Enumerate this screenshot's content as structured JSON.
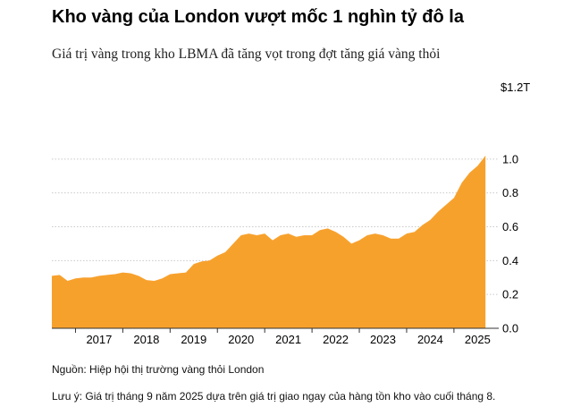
{
  "chart_data": {
    "type": "area",
    "title": "Kho vàng của London vượt mốc 1 nghìn tỷ đô la",
    "subtitle": "Giá trị vàng trong kho LBMA đã tăng vọt trong đợt tăng giá vàng thỏi",
    "y_unit_label": "$1.2T",
    "ylim": [
      0,
      1.2
    ],
    "y_ticks": [
      {
        "value": 0.0,
        "label": "0.0"
      },
      {
        "value": 0.2,
        "label": "0.2"
      },
      {
        "value": 0.4,
        "label": "0.4"
      },
      {
        "value": 0.6,
        "label": "0.6"
      },
      {
        "value": 0.8,
        "label": "0.8"
      },
      {
        "value": 1.0,
        "label": "1.0"
      }
    ],
    "x_ticks": [
      "2017",
      "2018",
      "2019",
      "2020",
      "2021",
      "2022",
      "2023",
      "2024",
      "2025"
    ],
    "grid": true,
    "color": "#f7a12d",
    "series": [
      {
        "x": [
          "2016-07",
          "2016-09",
          "2016-11",
          "2017-01",
          "2017-03",
          "2017-05",
          "2017-07",
          "2017-09",
          "2017-11",
          "2018-01",
          "2018-03",
          "2018-05",
          "2018-07",
          "2018-09",
          "2018-11",
          "2019-01",
          "2019-03",
          "2019-05",
          "2019-07",
          "2019-09",
          "2019-11",
          "2020-01",
          "2020-03",
          "2020-05",
          "2020-07",
          "2020-09",
          "2020-11",
          "2021-01",
          "2021-03",
          "2021-05",
          "2021-07",
          "2021-09",
          "2021-11",
          "2022-01",
          "2022-03",
          "2022-05",
          "2022-07",
          "2022-09",
          "2022-11",
          "2023-01",
          "2023-03",
          "2023-05",
          "2023-07",
          "2023-09",
          "2023-11",
          "2024-01",
          "2024-03",
          "2024-05",
          "2024-07",
          "2024-09",
          "2024-11",
          "2025-01",
          "2025-03",
          "2025-05",
          "2025-07",
          "2025-09"
        ],
        "values": [
          0.31,
          0.315,
          0.28,
          0.295,
          0.3,
          0.3,
          0.31,
          0.315,
          0.32,
          0.33,
          0.325,
          0.31,
          0.285,
          0.28,
          0.295,
          0.32,
          0.325,
          0.33,
          0.38,
          0.395,
          0.4,
          0.43,
          0.45,
          0.5,
          0.55,
          0.56,
          0.55,
          0.56,
          0.52,
          0.55,
          0.56,
          0.54,
          0.55,
          0.55,
          0.58,
          0.59,
          0.57,
          0.54,
          0.5,
          0.52,
          0.55,
          0.56,
          0.55,
          0.53,
          0.53,
          0.56,
          0.57,
          0.61,
          0.64,
          0.69,
          0.73,
          0.77,
          0.86,
          0.92,
          0.96,
          1.02
        ]
      }
    ]
  },
  "footer": {
    "source": "Nguồn: Hiệp hội thị trường vàng thỏi London",
    "note": "Lưu ý: Giá trị tháng 9 năm 2025 dựa trên giá trị giao ngay của hàng tồn kho vào cuối tháng 8."
  }
}
